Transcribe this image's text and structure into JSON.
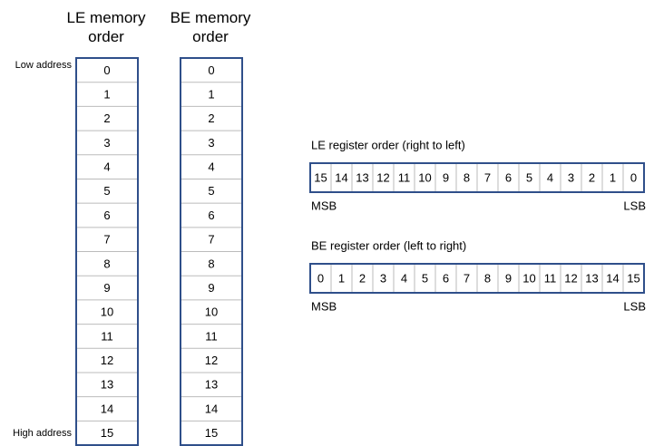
{
  "le_memory": {
    "title": "LE memory order",
    "cells": [
      0,
      1,
      2,
      3,
      4,
      5,
      6,
      7,
      8,
      9,
      10,
      11,
      12,
      13,
      14,
      15
    ]
  },
  "be_memory": {
    "title": "BE memory order",
    "cells": [
      0,
      1,
      2,
      3,
      4,
      5,
      6,
      7,
      8,
      9,
      10,
      11,
      12,
      13,
      14,
      15
    ]
  },
  "low_address": "Low address",
  "high_address": "High address",
  "le_register": {
    "title": "LE register order (right to left)",
    "cells": [
      15,
      14,
      13,
      12,
      11,
      10,
      9,
      8,
      7,
      6,
      5,
      4,
      3,
      2,
      1,
      0
    ],
    "msb": "MSB",
    "lsb": "LSB"
  },
  "be_register": {
    "title": "BE register order (left to right)",
    "cells": [
      0,
      1,
      2,
      3,
      4,
      5,
      6,
      7,
      8,
      9,
      10,
      11,
      12,
      13,
      14,
      15
    ],
    "msb": "MSB",
    "lsb": "LSB"
  }
}
